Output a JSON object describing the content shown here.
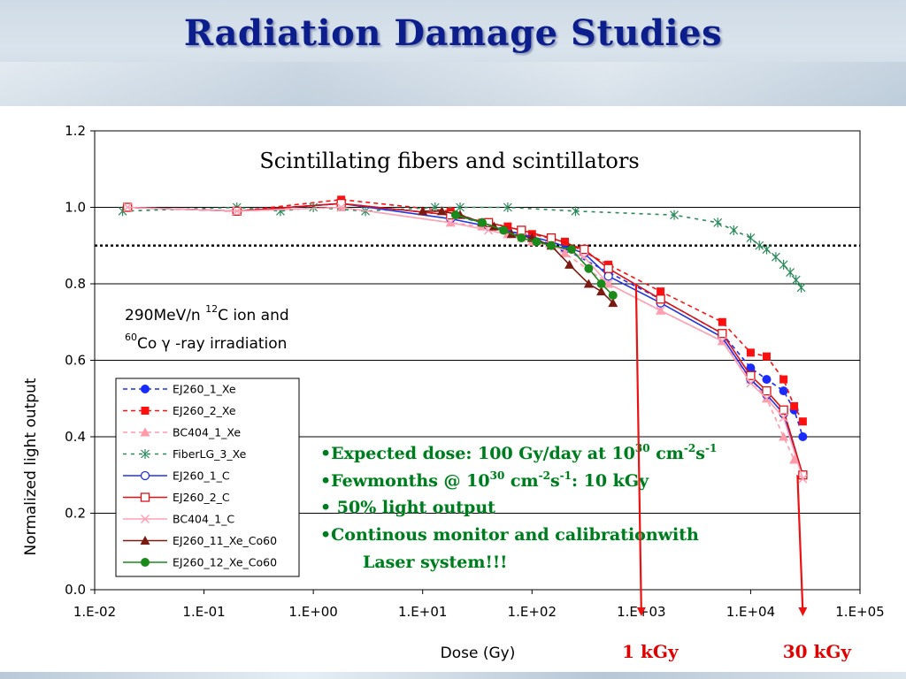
{
  "slide": {
    "title": "Radiation Damage Studies"
  },
  "chart_data": {
    "type": "line",
    "title": "Scintillating fibers and scintillators",
    "xlabel": "Dose (Gy)",
    "ylabel": "Normalized light output",
    "xscale": "log",
    "xlim": [
      0.01,
      100000
    ],
    "ylim": [
      0,
      1.2
    ],
    "x_tick_labels": [
      "1.E-02",
      "1.E-01",
      "1.E+00",
      "1.E+01",
      "1.E+02",
      "1.E+03",
      "1.E+04",
      "1.E+05"
    ],
    "y_tick_labels": [
      "0.0",
      "0.2",
      "0.4",
      "0.6",
      "0.8",
      "1.0",
      "1.2"
    ],
    "grid": "horizontal",
    "reference_line": 0.9,
    "legend_position": "left",
    "annotation_lines": [
      "290MeV/n ",
      "12",
      "C ion and",
      "60",
      "Co  γ -ray irradiation"
    ],
    "series": [
      {
        "name": "EJ260_1_Xe",
        "color": "#1a2bff",
        "dash": "5,4",
        "marker": "circle-filled",
        "x": [
          0.02,
          0.2,
          1.8,
          18,
          35,
          60,
          100,
          200,
          500,
          1500,
          5500,
          10000,
          14000,
          20000,
          25000,
          30000
        ],
        "y": [
          1.0,
          0.99,
          1.01,
          0.98,
          0.96,
          0.94,
          0.92,
          0.89,
          0.83,
          0.76,
          0.67,
          0.58,
          0.55,
          0.52,
          0.47,
          0.4
        ]
      },
      {
        "name": "EJ260_2_Xe",
        "color": "#ff1010",
        "dash": "5,4",
        "marker": "square-filled",
        "x": [
          0.02,
          0.2,
          1.8,
          18,
          35,
          60,
          100,
          200,
          500,
          1500,
          5500,
          10000,
          14000,
          20000,
          25000,
          30000
        ],
        "y": [
          1.0,
          0.99,
          1.02,
          0.99,
          0.96,
          0.95,
          0.93,
          0.91,
          0.85,
          0.78,
          0.7,
          0.62,
          0.61,
          0.55,
          0.48,
          0.44
        ]
      },
      {
        "name": "BC404_1_Xe",
        "color": "#ff9aa8",
        "dash": "5,4",
        "marker": "triangle-filled",
        "x": [
          0.02,
          0.2,
          1.8,
          18,
          35,
          60,
          100,
          200,
          500,
          1500,
          5500,
          10000,
          14000,
          20000,
          25000
        ],
        "y": [
          1.0,
          0.99,
          1.0,
          0.96,
          0.95,
          0.93,
          0.91,
          0.88,
          0.8,
          0.73,
          0.65,
          0.55,
          0.5,
          0.4,
          0.34
        ]
      },
      {
        "name": "FiberLG_3_Xe",
        "color": "#2a8a5a",
        "dash": "4,5",
        "marker": "asterisk",
        "x": [
          0.018,
          0.2,
          0.5,
          1.0,
          3.0,
          13,
          22,
          60,
          250,
          2000,
          5000,
          7000,
          10000,
          12000,
          14000,
          17000,
          20000,
          23000,
          26000,
          29000
        ],
        "y": [
          0.99,
          1.0,
          0.99,
          1.0,
          0.99,
          1.0,
          1.0,
          1.0,
          0.99,
          0.98,
          0.96,
          0.94,
          0.92,
          0.9,
          0.89,
          0.87,
          0.85,
          0.83,
          0.81,
          0.79
        ]
      },
      {
        "name": "EJ260_1_C",
        "color": "#2233dd",
        "dash": "",
        "marker": "circle-open",
        "x": [
          0.02,
          0.2,
          1.8,
          18,
          40,
          80,
          150,
          300,
          500,
          1500,
          5500,
          10000,
          14000,
          20000,
          30000
        ],
        "y": [
          1.0,
          0.99,
          1.01,
          0.97,
          0.95,
          0.93,
          0.91,
          0.88,
          0.82,
          0.75,
          0.66,
          0.55,
          0.51,
          0.46,
          0.3
        ]
      },
      {
        "name": "EJ260_2_C",
        "color": "#dd1111",
        "dash": "",
        "marker": "square-open",
        "x": [
          0.02,
          0.2,
          1.8,
          18,
          40,
          80,
          150,
          300,
          500,
          1500,
          5500,
          10000,
          14000,
          20000,
          30000
        ],
        "y": [
          1.0,
          0.99,
          1.01,
          0.98,
          0.96,
          0.94,
          0.92,
          0.89,
          0.84,
          0.76,
          0.67,
          0.56,
          0.52,
          0.47,
          0.3
        ]
      },
      {
        "name": "BC404_1_C",
        "color": "#ffa0b4",
        "dash": "",
        "marker": "x",
        "x": [
          0.02,
          0.2,
          1.8,
          18,
          40,
          80,
          150,
          300,
          500,
          1500,
          5500,
          10000,
          14000,
          20000,
          30000
        ],
        "y": [
          1.0,
          0.99,
          1.0,
          0.96,
          0.94,
          0.92,
          0.9,
          0.87,
          0.8,
          0.73,
          0.65,
          0.54,
          0.5,
          0.45,
          0.29
        ]
      },
      {
        "name": "EJ260_11_Xe_Co60",
        "color": "#7a1a10",
        "dash": "",
        "marker": "triangle-filled",
        "x": [
          10,
          15,
          22,
          35,
          45,
          65,
          100,
          150,
          220,
          330,
          430,
          550
        ],
        "y": [
          0.99,
          0.99,
          0.98,
          0.96,
          0.95,
          0.93,
          0.92,
          0.9,
          0.85,
          0.8,
          0.78,
          0.75
        ]
      },
      {
        "name": "EJ260_12_Xe_Co60",
        "color": "#1a8a1a",
        "dash": "",
        "marker": "circle-filled",
        "x": [
          20,
          35,
          55,
          80,
          110,
          150,
          230,
          330,
          430,
          550
        ],
        "y": [
          0.98,
          0.96,
          0.94,
          0.92,
          0.91,
          0.9,
          0.89,
          0.84,
          0.8,
          0.77
        ]
      }
    ],
    "bullets": [
      "•Expected dose: 100 Gy/day at 10",
      "30",
      " cm",
      "-2",
      "s",
      "-1",
      "•Fewmonths @ 10",
      "30",
      " cm",
      "-2",
      "s",
      "-1",
      ": 10 kGy",
      "• 50% light output",
      "•Continous monitor and calibrationwith",
      "Laser system!!!"
    ],
    "dose_markers": [
      {
        "label": "1 kGy",
        "x": 1000
      },
      {
        "label": "30 kGy",
        "x": 30000
      }
    ],
    "marker_color": "#ee1111"
  }
}
